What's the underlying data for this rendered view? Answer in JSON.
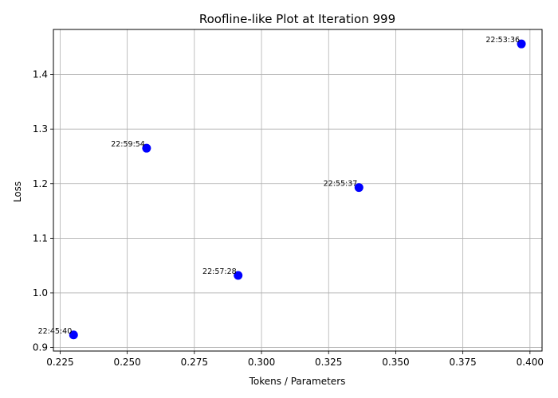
{
  "chart_data": {
    "type": "scatter",
    "title": "Roofline-like Plot at Iteration 999",
    "xlabel": "Tokens / Parameters",
    "ylabel": "Loss",
    "xlim": [
      0.2225,
      0.4045
    ],
    "ylim": [
      0.8935,
      1.4825
    ],
    "xticks": [
      0.225,
      0.25,
      0.275,
      0.3,
      0.325,
      0.35,
      0.375,
      0.4
    ],
    "xtick_labels": [
      "0.225",
      "0.250",
      "0.275",
      "0.300",
      "0.325",
      "0.350",
      "0.375",
      "0.400"
    ],
    "yticks": [
      0.9,
      1.0,
      1.1,
      1.2,
      1.3,
      1.4
    ],
    "ytick_labels": [
      "0.9",
      "1.0",
      "1.1",
      "1.2",
      "1.3",
      "1.4"
    ],
    "grid": true,
    "marker_color": "#0000ff",
    "points": [
      {
        "x": 0.23,
        "y": 0.923,
        "label": "22:45:40"
      },
      {
        "x": 0.2572,
        "y": 1.265,
        "label": "22:59:54"
      },
      {
        "x": 0.2913,
        "y": 1.032,
        "label": "22:57:28"
      },
      {
        "x": 0.3363,
        "y": 1.193,
        "label": "22:55:37"
      },
      {
        "x": 0.3968,
        "y": 1.456,
        "label": "22:53:36"
      }
    ]
  }
}
